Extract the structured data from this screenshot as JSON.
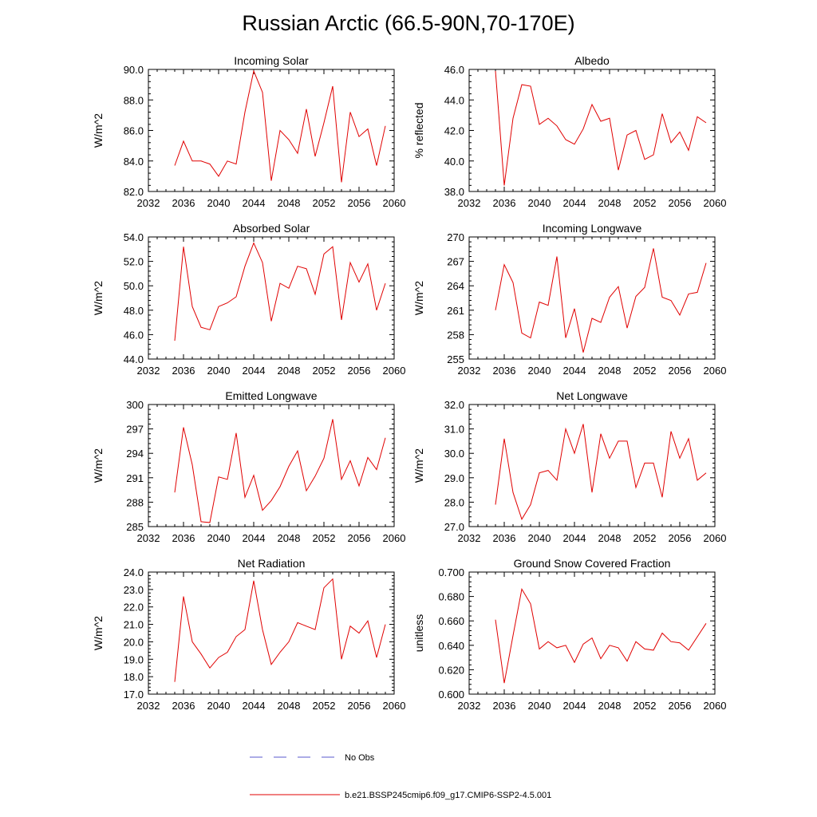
{
  "title": "Russian Arctic (66.5-90N,70-170E)",
  "legend": [
    {
      "label": "No Obs",
      "color": "#5a5acd",
      "dashed": true
    },
    {
      "label": "b.e21.BSSP245cmip6.f09_g17.CMIP6-SSP2-4.5.001",
      "color": "#e00000",
      "dashed": false
    }
  ],
  "chart_data": [
    {
      "type": "line",
      "title": "Incoming Solar",
      "ylabel": "W/m^2",
      "xlim": [
        2032,
        2060
      ],
      "ylim": [
        82,
        90
      ],
      "xticks": [
        "2032",
        "2036",
        "2040",
        "2044",
        "2048",
        "2052",
        "2056",
        "2060"
      ],
      "yticks": [
        "82.0",
        "84.0",
        "86.0",
        "88.0",
        "90.0"
      ],
      "x": [
        2035,
        2036,
        2037,
        2038,
        2039,
        2040,
        2041,
        2042,
        2043,
        2044,
        2045,
        2046,
        2047,
        2048,
        2049,
        2050,
        2051,
        2052,
        2053,
        2054,
        2055,
        2056,
        2057,
        2058,
        2059
      ],
      "values": [
        83.7,
        85.3,
        84.0,
        84.0,
        83.8,
        83.0,
        84.0,
        83.8,
        87.2,
        89.9,
        88.5,
        82.7,
        86.0,
        85.4,
        84.5,
        87.4,
        84.3,
        86.5,
        88.9,
        82.6,
        87.2,
        85.6,
        86.1,
        83.7,
        86.3
      ],
      "color": "#e00000"
    },
    {
      "type": "line",
      "title": "Albedo",
      "ylabel": "% reflected",
      "xlim": [
        2032,
        2060
      ],
      "ylim": [
        38,
        46
      ],
      "xticks": [
        "2032",
        "2036",
        "2040",
        "2044",
        "2048",
        "2052",
        "2056",
        "2060"
      ],
      "yticks": [
        "38.0",
        "40.0",
        "42.0",
        "44.0",
        "46.0"
      ],
      "x": [
        2035,
        2036,
        2037,
        2038,
        2039,
        2040,
        2041,
        2042,
        2043,
        2044,
        2045,
        2046,
        2047,
        2048,
        2049,
        2050,
        2051,
        2052,
        2053,
        2054,
        2055,
        2056,
        2057,
        2058,
        2059
      ],
      "values": [
        45.9,
        38.4,
        42.8,
        45.0,
        44.9,
        42.4,
        42.8,
        42.3,
        41.4,
        41.1,
        42.1,
        43.7,
        42.6,
        42.8,
        39.4,
        41.7,
        42.0,
        40.1,
        40.4,
        43.1,
        41.2,
        41.9,
        40.7,
        42.9,
        42.5
      ],
      "color": "#e00000"
    },
    {
      "type": "line",
      "title": "Absorbed Solar",
      "ylabel": "W/m^2",
      "xlim": [
        2032,
        2060
      ],
      "ylim": [
        44,
        54
      ],
      "xticks": [
        "2032",
        "2036",
        "2040",
        "2044",
        "2048",
        "2052",
        "2056",
        "2060"
      ],
      "yticks": [
        "44.0",
        "46.0",
        "48.0",
        "50.0",
        "52.0",
        "54.0"
      ],
      "x": [
        2035,
        2036,
        2037,
        2038,
        2039,
        2040,
        2041,
        2042,
        2043,
        2044,
        2045,
        2046,
        2047,
        2048,
        2049,
        2050,
        2051,
        2052,
        2053,
        2054,
        2055,
        2056,
        2057,
        2058,
        2059
      ],
      "values": [
        45.5,
        53.2,
        48.3,
        46.6,
        46.4,
        48.3,
        48.6,
        49.1,
        51.6,
        53.5,
        51.9,
        47.1,
        50.2,
        49.8,
        51.6,
        51.4,
        49.3,
        52.6,
        53.2,
        47.2,
        51.9,
        50.3,
        51.8,
        48.0,
        50.2
      ],
      "color": "#e00000"
    },
    {
      "type": "line",
      "title": "Incoming Longwave",
      "ylabel": "W/m^2",
      "xlim": [
        2032,
        2060
      ],
      "ylim": [
        255,
        270
      ],
      "xticks": [
        "2032",
        "2036",
        "2040",
        "2044",
        "2048",
        "2052",
        "2056",
        "2060"
      ],
      "yticks": [
        "255",
        "258",
        "261",
        "264",
        "267",
        "270"
      ],
      "x": [
        2035,
        2036,
        2037,
        2038,
        2039,
        2040,
        2041,
        2042,
        2043,
        2044,
        2045,
        2046,
        2047,
        2048,
        2049,
        2050,
        2051,
        2052,
        2053,
        2054,
        2055,
        2056,
        2057,
        2058,
        2059
      ],
      "values": [
        261.0,
        266.6,
        264.4,
        258.2,
        257.6,
        262.0,
        261.6,
        267.6,
        257.6,
        261.2,
        255.8,
        260.0,
        259.5,
        262.6,
        263.9,
        258.8,
        262.7,
        263.8,
        268.6,
        262.6,
        262.2,
        260.4,
        263.0,
        263.2,
        266.8
      ],
      "color": "#e00000"
    },
    {
      "type": "line",
      "title": "Emitted Longwave",
      "ylabel": "W/m^2",
      "xlim": [
        2032,
        2060
      ],
      "ylim": [
        285,
        300
      ],
      "xticks": [
        "2032",
        "2036",
        "2040",
        "2044",
        "2048",
        "2052",
        "2056",
        "2060"
      ],
      "yticks": [
        "285",
        "288",
        "291",
        "294",
        "297",
        "300"
      ],
      "x": [
        2035,
        2036,
        2037,
        2038,
        2039,
        2040,
        2041,
        2042,
        2043,
        2044,
        2045,
        2046,
        2047,
        2048,
        2049,
        2050,
        2051,
        2052,
        2053,
        2054,
        2055,
        2056,
        2057,
        2058,
        2059
      ],
      "values": [
        289.2,
        297.2,
        292.6,
        285.6,
        285.5,
        291.1,
        290.8,
        296.5,
        288.6,
        291.3,
        287.0,
        288.2,
        289.9,
        292.4,
        294.3,
        289.4,
        291.2,
        293.4,
        298.2,
        290.8,
        293.1,
        290.0,
        293.5,
        292.0,
        295.9
      ],
      "color": "#e00000"
    },
    {
      "type": "line",
      "title": "Net Longwave",
      "ylabel": "W/m^2",
      "xlim": [
        2032,
        2060
      ],
      "ylim": [
        27,
        32
      ],
      "xticks": [
        "2032",
        "2036",
        "2040",
        "2044",
        "2048",
        "2052",
        "2056",
        "2060"
      ],
      "yticks": [
        "27.0",
        "28.0",
        "29.0",
        "30.0",
        "31.0",
        "32.0"
      ],
      "x": [
        2035,
        2036,
        2037,
        2038,
        2039,
        2040,
        2041,
        2042,
        2043,
        2044,
        2045,
        2046,
        2047,
        2048,
        2049,
        2050,
        2051,
        2052,
        2053,
        2054,
        2055,
        2056,
        2057,
        2058,
        2059
      ],
      "values": [
        27.9,
        30.6,
        28.4,
        27.3,
        27.9,
        29.2,
        29.3,
        28.9,
        31.0,
        30.0,
        31.2,
        28.4,
        30.8,
        29.8,
        30.5,
        30.5,
        28.6,
        29.6,
        29.6,
        28.2,
        30.9,
        29.8,
        30.6,
        28.9,
        29.2
      ],
      "color": "#e00000"
    },
    {
      "type": "line",
      "title": "Net Radiation",
      "ylabel": "W/m^2",
      "xlim": [
        2032,
        2060
      ],
      "ylim": [
        17,
        24
      ],
      "xticks": [
        "2032",
        "2036",
        "2040",
        "2044",
        "2048",
        "2052",
        "2056",
        "2060"
      ],
      "yticks": [
        "17.0",
        "18.0",
        "19.0",
        "20.0",
        "21.0",
        "22.0",
        "23.0",
        "24.0"
      ],
      "x": [
        2035,
        2036,
        2037,
        2038,
        2039,
        2040,
        2041,
        2042,
        2043,
        2044,
        2045,
        2046,
        2047,
        2048,
        2049,
        2050,
        2051,
        2052,
        2053,
        2054,
        2055,
        2056,
        2057,
        2058,
        2059
      ],
      "values": [
        17.7,
        22.6,
        20.0,
        19.3,
        18.5,
        19.1,
        19.4,
        20.3,
        20.7,
        23.5,
        20.7,
        18.7,
        19.4,
        20.0,
        21.1,
        20.9,
        20.7,
        23.1,
        23.6,
        19.0,
        20.9,
        20.5,
        21.2,
        19.1,
        21.0
      ],
      "color": "#e00000"
    },
    {
      "type": "line",
      "title": "Ground Snow Covered Fraction",
      "ylabel": "unitless",
      "xlim": [
        2032,
        2060
      ],
      "ylim": [
        0.6,
        0.7
      ],
      "xticks": [
        "2032",
        "2036",
        "2040",
        "2044",
        "2048",
        "2052",
        "2056",
        "2060"
      ],
      "yticks": [
        "0.600",
        "0.620",
        "0.640",
        "0.660",
        "0.680",
        "0.700"
      ],
      "x": [
        2035,
        2036,
        2037,
        2038,
        2039,
        2040,
        2041,
        2042,
        2043,
        2044,
        2045,
        2046,
        2047,
        2048,
        2049,
        2050,
        2051,
        2052,
        2053,
        2054,
        2055,
        2056,
        2057,
        2058,
        2059
      ],
      "values": [
        0.661,
        0.609,
        0.648,
        0.686,
        0.674,
        0.637,
        0.643,
        0.638,
        0.64,
        0.626,
        0.641,
        0.646,
        0.629,
        0.64,
        0.638,
        0.627,
        0.643,
        0.637,
        0.636,
        0.65,
        0.643,
        0.642,
        0.636,
        0.647,
        0.658
      ],
      "color": "#e00000"
    }
  ]
}
